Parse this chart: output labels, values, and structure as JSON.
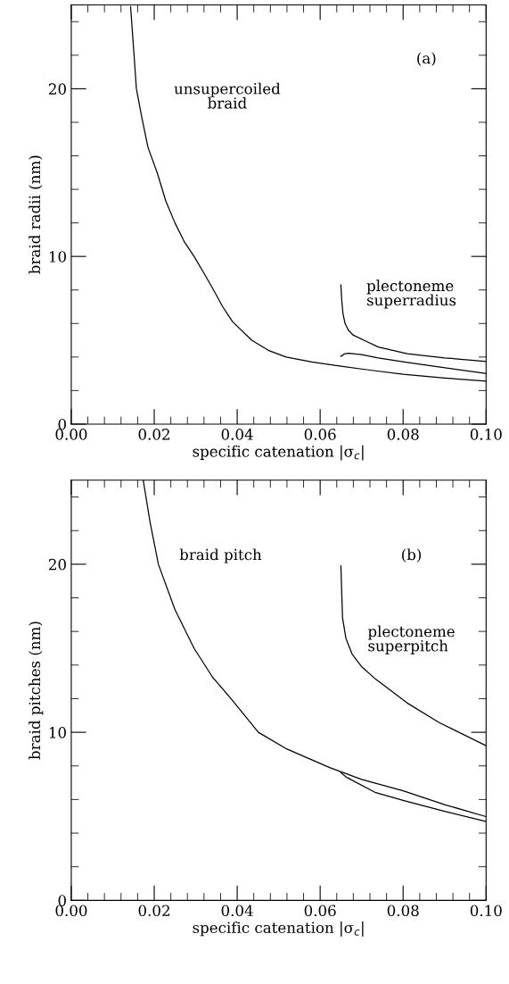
{
  "chart_data": [
    {
      "type": "line",
      "xlabel": "specific catenation |σ$_{c}$|",
      "ylabel": "braid radii (nm)",
      "xlim": [
        0,
        0.1
      ],
      "ylim": [
        0,
        25
      ],
      "xticks": [
        {
          "value": 0,
          "label": "0.00"
        },
        {
          "value": 0.02,
          "label": "0.02"
        },
        {
          "value": 0.04,
          "label": "0.04"
        },
        {
          "value": 0.06,
          "label": "0.06"
        },
        {
          "value": 0.08,
          "label": "0.08"
        },
        {
          "value": 0.1,
          "label": "0.10"
        }
      ],
      "yticks": [
        0,
        10,
        20
      ],
      "grid": false,
      "legend": false,
      "marker": "none",
      "line_style": "solid",
      "annotations": [
        "(a)",
        "unsupercoiled\nbraid",
        "plectoneme\nsuperradius"
      ],
      "series": [
        {
          "color": "#000000",
          "x": [
            0.0143,
            0.015,
            0.0157,
            0.017,
            0.0185,
            0.0207,
            0.0228,
            0.025,
            0.0272,
            0.0296,
            0.032,
            0.0343,
            0.0365,
            0.0389,
            0.0435,
            0.0475,
            0.0518,
            0.058,
            0.065,
            0.072,
            0.08,
            0.09,
            0.1
          ],
          "values": [
            24.9,
            22.5,
            20,
            18.3,
            16.5,
            15,
            13.3,
            12,
            10.9,
            10,
            9,
            8,
            7,
            6.1,
            5,
            4.4,
            4,
            3.7,
            3.45,
            3.22,
            2.97,
            2.75,
            2.56
          ]
        },
        {
          "color": "#000000",
          "x": [
            0.065,
            0.0652,
            0.0655,
            0.066,
            0.0668,
            0.068,
            0.071,
            0.074,
            0.081,
            0.09,
            0.1
          ],
          "values": [
            8.3,
            7.4,
            6.6,
            6,
            5.6,
            5.3,
            4.95,
            4.6,
            4.2,
            3.95,
            3.74
          ]
        },
        {
          "color": "#000000",
          "x": [
            0.065,
            0.0658,
            0.0668,
            0.07,
            0.074,
            0.081,
            0.0882,
            0.1
          ],
          "values": [
            4.04,
            4.18,
            4.22,
            4.14,
            3.95,
            3.68,
            3.42,
            3.02
          ]
        }
      ]
    },
    {
      "type": "line",
      "xlabel": "specific catenation |σ$_{c}$|",
      "ylabel": "braid pitches (nm)",
      "xlim": [
        0,
        0.1
      ],
      "ylim": [
        0,
        25
      ],
      "xticks": [
        {
          "value": 0,
          "label": "0.00"
        },
        {
          "value": 0.02,
          "label": "0.02"
        },
        {
          "value": 0.04,
          "label": "0.04"
        },
        {
          "value": 0.06,
          "label": "0.06"
        },
        {
          "value": 0.08,
          "label": "0.08"
        },
        {
          "value": 0.1,
          "label": "0.10"
        }
      ],
      "yticks": [
        0,
        10,
        20
      ],
      "grid": false,
      "legend": false,
      "marker": "none",
      "line_style": "solid",
      "annotations": [
        "(b)",
        "braid pitch",
        "plectoneme\nsuperpitch"
      ],
      "series": [
        {
          "color": "#000000",
          "x": [
            0.01735,
            0.019,
            0.021,
            0.025,
            0.0296,
            0.034,
            0.0385,
            0.0451,
            0.052,
            0.0623,
            0.07,
            0.08,
            0.09,
            0.1
          ],
          "values": [
            25,
            22.5,
            20,
            17.3,
            15,
            13.3,
            12,
            10,
            9,
            7.9,
            7.2,
            6.52,
            5.7,
            4.98
          ]
        },
        {
          "color": "#000000",
          "x": [
            0.065,
            0.0665,
            0.0732,
            0.08,
            0.09,
            0.1
          ],
          "values": [
            7.59,
            7.3,
            6.43,
            5.95,
            5.3,
            4.69
          ]
        },
        {
          "color": "#000000",
          "x": [
            0.065,
            0.0652,
            0.0654,
            0.0662,
            0.0677,
            0.07,
            0.0732,
            0.081,
            0.0887,
            0.1
          ],
          "values": [
            19.9,
            18.3,
            16.8,
            15.6,
            14.65,
            13.9,
            13.2,
            11.74,
            10.58,
            9.2
          ]
        }
      ]
    }
  ]
}
